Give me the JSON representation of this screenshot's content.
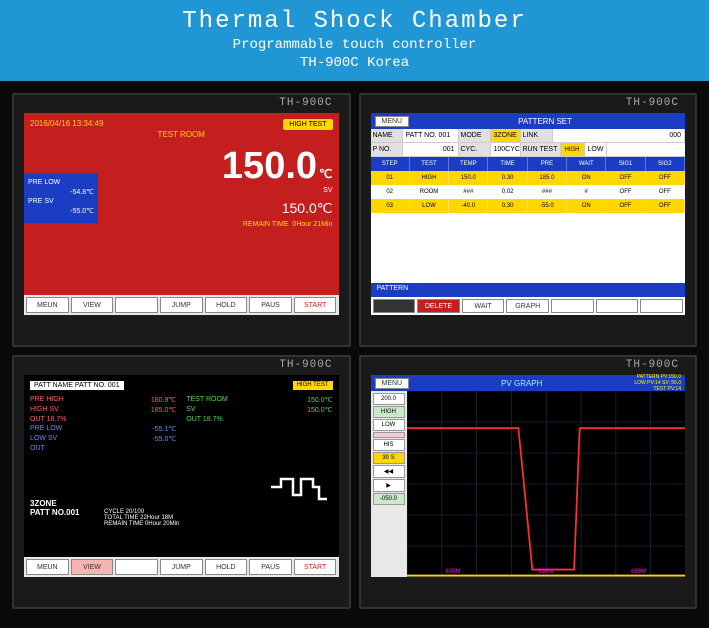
{
  "header": {
    "title": "Thermal Shock Chamber",
    "sub1": "Programmable touch controller",
    "sub2": "TH-900C Korea"
  },
  "brand": "TH-900C",
  "s1": {
    "datetime": "2016/04/16 13:34:49",
    "room": "TEST ROOM",
    "badge": "HIGH TEST",
    "pv": "150.0",
    "unit": "℃",
    "sv": "150.0℃",
    "prelow_lbl": "PRE LOW",
    "prelow_v": "-54.8℃",
    "presv_lbl": "PRE SV",
    "presv_v": "-55.0℃",
    "svlbl": "SV",
    "rt_lbl": "REMAIN TIME",
    "rt_v": "0Hour 21Min",
    "btns": [
      "MEUN",
      "VIEW",
      "",
      "JUMP",
      "HOLD",
      "PAUS",
      "START"
    ]
  },
  "s2": {
    "menu": "MENU",
    "title": "PATTERN SET",
    "r1": {
      "name_l": "NAME",
      "name_v": "PATT NO. 001",
      "mode_l": "MODE",
      "mode_v": "3ZONE",
      "link_l": "LINK",
      "link_v": "000"
    },
    "r2": {
      "pno_l": "P NO.",
      "pno_v": "001",
      "cyc_l": "CYC.",
      "cyc_v": "100CYC",
      "run_l": "RUN TEST",
      "high": "HIGH",
      "low": "LOW"
    },
    "th": [
      "STEP",
      "TEST",
      "TEMP",
      "TIME",
      "PRE",
      "WAIT",
      "SIG1",
      "SIG2"
    ],
    "rows": [
      [
        "01",
        "HIGH",
        "150.0",
        "0.30",
        "185.0",
        "ON",
        "OFF",
        "OFF"
      ],
      [
        "02",
        "ROOM",
        "###",
        "0.02",
        "###",
        "#",
        "OFF",
        "OFF"
      ],
      [
        "03",
        "LOW",
        "-40.0",
        "0.30",
        "-55.0",
        "ON",
        "OFF",
        "OFF"
      ]
    ],
    "ft": "PATTERN",
    "bot": [
      "",
      "DELETE",
      "WAIT",
      "GRAPH",
      "",
      "",
      ""
    ]
  },
  "s3": {
    "name_l": "PATT NAME",
    "name_v": "PATT NO. 001",
    "badge": "HIGH TEST",
    "lines": [
      {
        "l": "PRE HIGH",
        "v": "180.9℃",
        "c": "r"
      },
      {
        "l": "TEST ROOM",
        "v": "150.0℃",
        "c": "g"
      },
      {
        "l": "HIGH SV",
        "v": "185.0℃",
        "c": "r"
      },
      {
        "l": "SV",
        "v": "150.0℃",
        "c": "g"
      },
      {
        "l": "OUT  18.7%",
        "v": "",
        "c": "r"
      },
      {
        "l": "OUT  18.7%",
        "v": "",
        "c": "g"
      },
      {
        "l": "PRE LOW",
        "v": "-55.1℃",
        "c": "b"
      },
      {
        "l": "",
        "v": "",
        "c": ""
      },
      {
        "l": "LOW SV",
        "v": "-55.0℃",
        "c": "b"
      },
      {
        "l": "",
        "v": "",
        "c": ""
      },
      {
        "l": "OUT",
        "v": "",
        "c": "b"
      }
    ],
    "zone": "3ZONE",
    "patt": "PATT NO.001",
    "cycle": "CYCLE  20/100",
    "total": "TOTAL TIME  22Hour 18M",
    "remain": "REMAIN TIME  0Hour 20Min",
    "btns": [
      "MEUN",
      "VIEW",
      "",
      "JUMP",
      "HOLD",
      "PAUS",
      "START"
    ]
  },
  "s4": {
    "menu": "MENU",
    "title": "PV GRAPH",
    "sig": [
      "PATTERN  PV:150.0",
      "LOW PV:14    SV: 55.0",
      "TEST PV:14"
    ],
    "side": [
      {
        "t": "200.0",
        "c": ""
      },
      {
        "t": "HIGH",
        "c": "g"
      },
      {
        "t": "LOW",
        "c": ""
      },
      {
        "t": "",
        "c": "p"
      },
      {
        "t": "HIS",
        "c": ""
      },
      {
        "t": "30 S",
        "c": "y"
      },
      {
        "t": "◀◀",
        "c": ""
      },
      {
        "t": "▶",
        "c": ""
      },
      {
        "t": "-050.0",
        "c": "g"
      }
    ],
    "xaxis": [
      "600M",
      "630M",
      "680M"
    ],
    "chart": {
      "bg": "#000",
      "grid": "#303050",
      "line1": "#ff3030",
      "line2": "#ffd700",
      "xrange": [
        600,
        700
      ],
      "yrange": [
        -50,
        200
      ],
      "series1": [
        [
          600,
          150
        ],
        [
          640,
          150
        ],
        [
          645,
          -40
        ],
        [
          660,
          -40
        ],
        [
          662,
          150
        ],
        [
          700,
          150
        ]
      ],
      "series2": [
        [
          600,
          -48
        ],
        [
          700,
          -48
        ]
      ]
    }
  }
}
